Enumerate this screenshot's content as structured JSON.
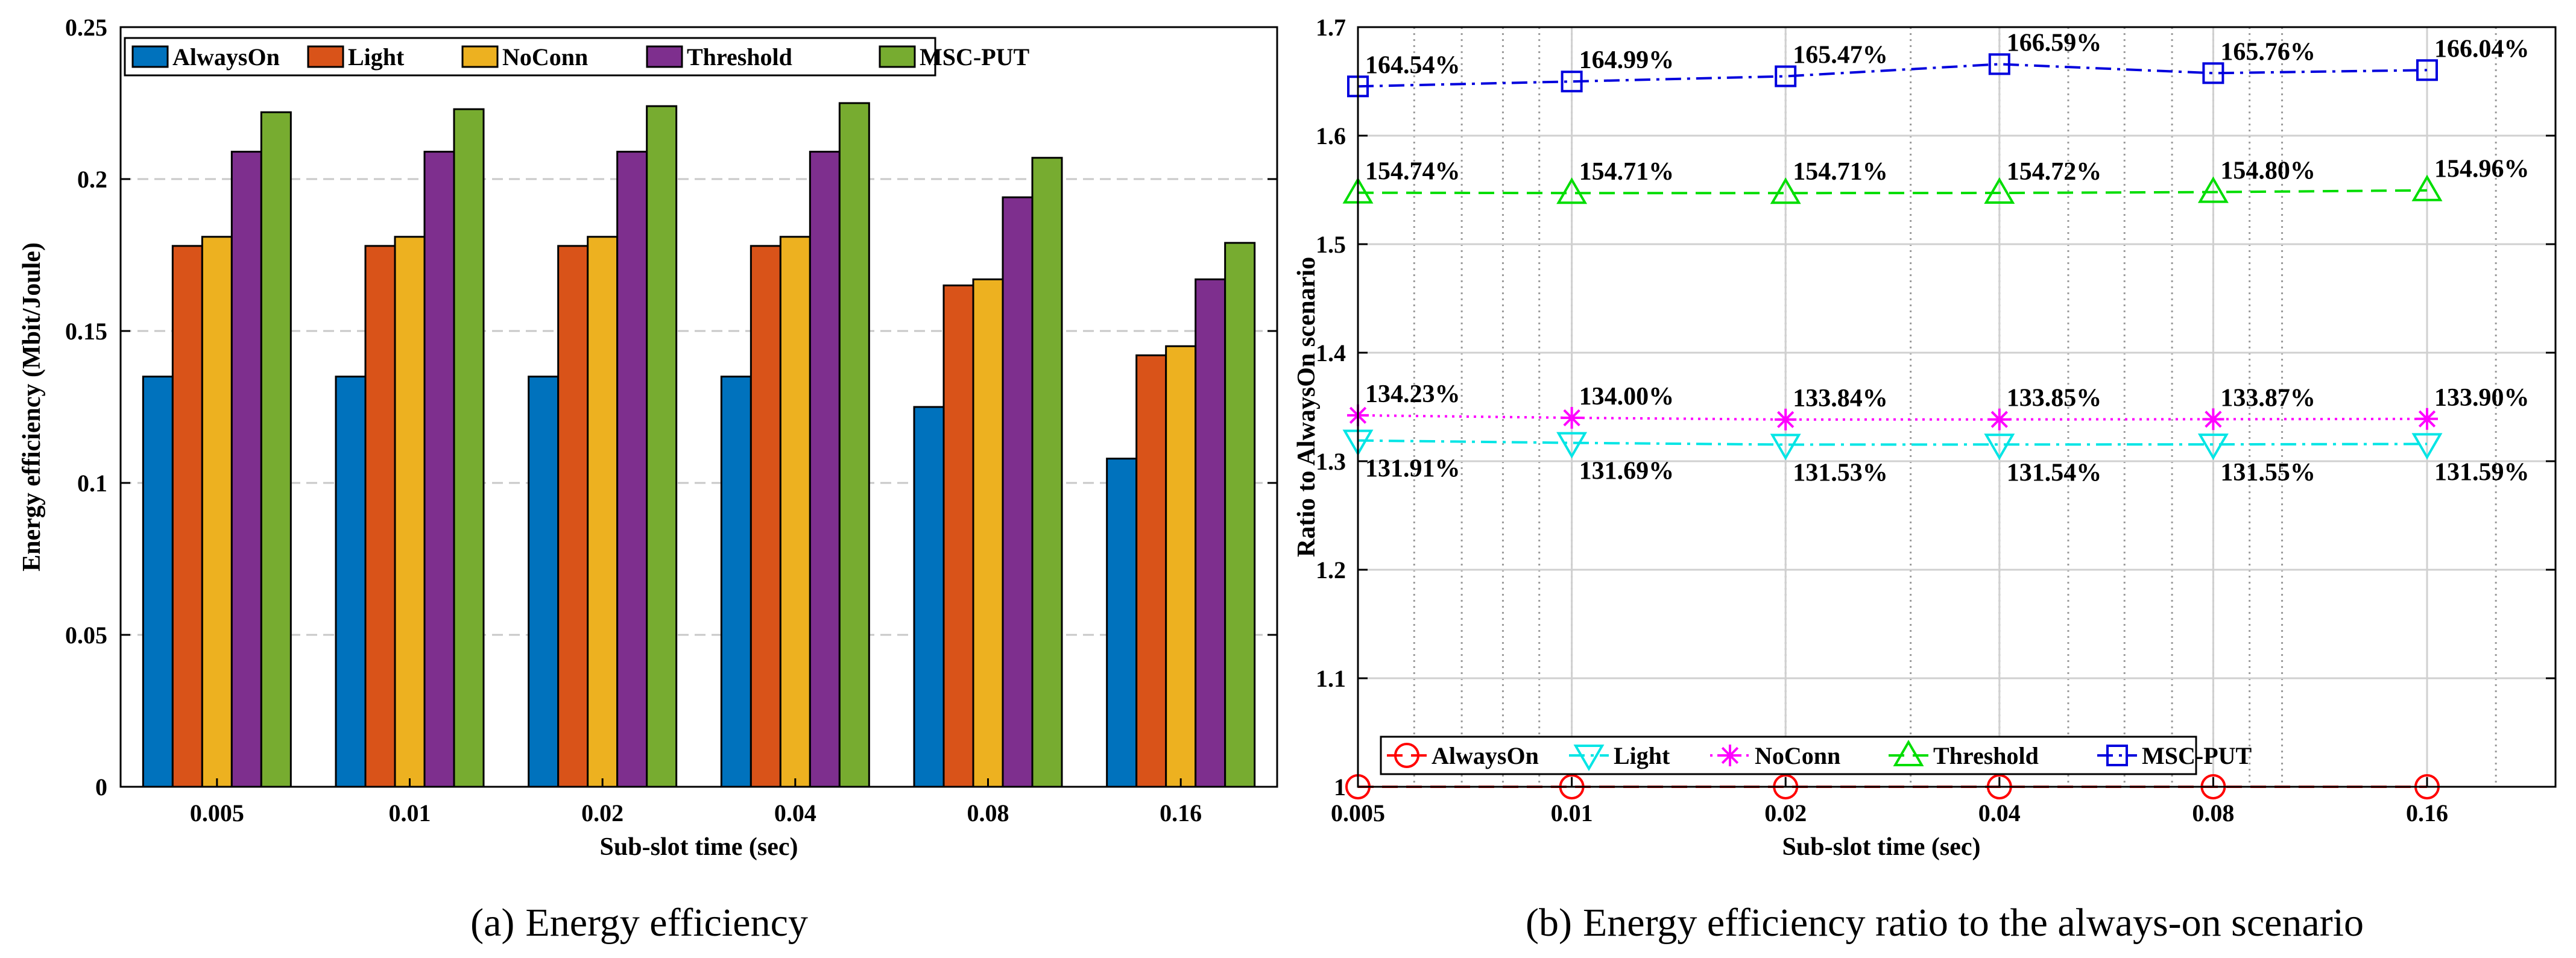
{
  "chart_data": [
    {
      "type": "bar",
      "panel": "a",
      "caption_letter": "(a)",
      "caption_text": "Energy efficiency",
      "xlabel": "Sub-slot time (sec)",
      "ylabel": "Energy efficiency (Mbit/Joule)",
      "categories": [
        "0.005",
        "0.01",
        "0.02",
        "0.04",
        "0.08",
        "0.16"
      ],
      "ylim": [
        0,
        0.25
      ],
      "yticks": [
        0,
        0.05,
        0.1,
        0.15,
        0.2,
        0.25
      ],
      "ytick_labels": [
        "0",
        "0.05",
        "0.1",
        "0.15",
        "0.2",
        "0.25"
      ],
      "grid": "horizontal dashed",
      "legend_position": "top-left",
      "series": [
        {
          "name": "AlwaysOn",
          "color": "#0072BD",
          "values": [
            0.135,
            0.135,
            0.135,
            0.135,
            0.125,
            0.108
          ]
        },
        {
          "name": "Light",
          "color": "#D95319",
          "values": [
            0.178,
            0.178,
            0.178,
            0.178,
            0.165,
            0.142
          ]
        },
        {
          "name": "NoConn",
          "color": "#EDB120",
          "values": [
            0.181,
            0.181,
            0.181,
            0.181,
            0.167,
            0.145
          ]
        },
        {
          "name": "Threshold",
          "color": "#7E2F8E",
          "values": [
            0.209,
            0.209,
            0.209,
            0.209,
            0.194,
            0.167
          ]
        },
        {
          "name": "MSC-PUT",
          "color": "#77AC30",
          "values": [
            0.222,
            0.223,
            0.224,
            0.225,
            0.207,
            0.179
          ]
        }
      ]
    },
    {
      "type": "line",
      "panel": "b",
      "caption_letter": "(b)",
      "caption_text": "Energy efficiency ratio to the always-on scenario",
      "xlabel": "Sub-slot time (sec)",
      "ylabel": "Ratio to AlwaysOn scenario",
      "x_scale": "log",
      "x": [
        0.005,
        0.01,
        0.02,
        0.04,
        0.08,
        0.16
      ],
      "xtick_labels": [
        "0.005",
        "0.01",
        "0.02",
        "0.04",
        "0.08",
        "0.16"
      ],
      "ylim": [
        1.0,
        1.7
      ],
      "yticks": [
        1.0,
        1.1,
        1.2,
        1.3,
        1.4,
        1.5,
        1.6,
        1.7
      ],
      "ytick_labels": [
        "1",
        "1.1",
        "1.2",
        "1.3",
        "1.4",
        "1.5",
        "1.6",
        "1.7"
      ],
      "grid": "on (with log minor grid)",
      "legend_position": "bottom-left",
      "series": [
        {
          "name": "AlwaysOn",
          "color": "#FF0000",
          "marker": "circle",
          "linestyle": "dashed",
          "values": [
            1.0,
            1.0,
            1.0,
            1.0,
            1.0,
            1.0
          ],
          "labels": []
        },
        {
          "name": "Light",
          "color": "#00E5E5",
          "marker": "triangle-down",
          "linestyle": "dashdot",
          "values": [
            1.3191,
            1.3169,
            1.3153,
            1.3154,
            1.3155,
            1.3159
          ],
          "labels": [
            "131.91%",
            "131.69%",
            "131.53%",
            "131.54%",
            "131.55%",
            "131.59%"
          ],
          "label_side": "below"
        },
        {
          "name": "NoConn",
          "color": "#FF00FF",
          "marker": "asterisk",
          "linestyle": "dotted",
          "values": [
            1.3423,
            1.34,
            1.3384,
            1.3385,
            1.3387,
            1.339
          ],
          "labels": [
            "134.23%",
            "134.00%",
            "133.84%",
            "133.85%",
            "133.87%",
            "133.90%"
          ],
          "label_side": "above"
        },
        {
          "name": "Threshold",
          "color": "#00DD00",
          "marker": "triangle-up",
          "linestyle": "dashed",
          "values": [
            1.5474,
            1.5471,
            1.5471,
            1.5472,
            1.548,
            1.5496
          ],
          "labels": [
            "154.74%",
            "154.71%",
            "154.71%",
            "154.72%",
            "154.80%",
            "154.96%"
          ],
          "label_side": "above"
        },
        {
          "name": "MSC-PUT",
          "color": "#0000DD",
          "marker": "square",
          "linestyle": "dashdot",
          "values": [
            1.6454,
            1.6499,
            1.6547,
            1.6659,
            1.6576,
            1.6604
          ],
          "labels": [
            "164.54%",
            "164.99%",
            "165.47%",
            "166.59%",
            "165.76%",
            "166.04%"
          ],
          "label_side": "above"
        }
      ]
    }
  ]
}
